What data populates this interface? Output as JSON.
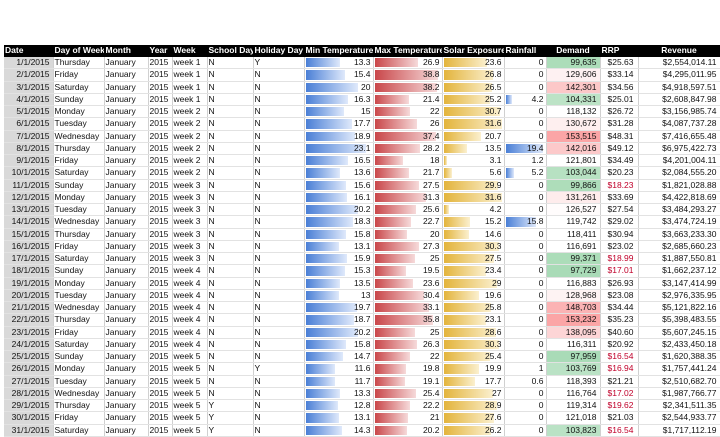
{
  "headers": [
    "Date",
    "Day of Week",
    "Month",
    "Year",
    "Week",
    "School Day",
    "Holiday Day",
    "Min Temperature",
    "Max Temperature",
    "Solar Exposure",
    "Rainfall",
    "Demand",
    "RRP",
    "Revenue"
  ],
  "scales": {
    "min_temp_max": 25,
    "max_temp_max": 40,
    "solar_max": 32,
    "rain_max": 20,
    "demand_low": 96000,
    "demand_high": 155000
  },
  "colors": {
    "header_bg": "#000000",
    "date_col_bg": "#d9d9d9",
    "green": "#63be7b",
    "red": "#f8696b",
    "low_rrp_text": "#c0002a"
  },
  "rows": [
    {
      "date": "1/1/2015",
      "dow": "Thursday",
      "month": "January",
      "year": "2015",
      "week": "week 1",
      "school": "N",
      "holiday": "Y",
      "min": "13.3",
      "max": "26.9",
      "solar": "23.6",
      "rain": "0",
      "demand": "99,635",
      "rrp": "$25.63",
      "rev": "$2,554,014.11"
    },
    {
      "date": "2/1/2015",
      "dow": "Friday",
      "month": "January",
      "year": "2015",
      "week": "week 1",
      "school": "N",
      "holiday": "N",
      "min": "15.4",
      "max": "38.8",
      "solar": "26.8",
      "rain": "0",
      "demand": "129,606",
      "rrp": "$33.14",
      "rev": "$4,295,011.95"
    },
    {
      "date": "3/1/2015",
      "dow": "Saturday",
      "month": "January",
      "year": "2015",
      "week": "week 1",
      "school": "N",
      "holiday": "N",
      "min": "20",
      "max": "38.2",
      "solar": "26.5",
      "rain": "0",
      "demand": "142,301",
      "rrp": "$34.56",
      "rev": "$4,918,597.51"
    },
    {
      "date": "4/1/2015",
      "dow": "Sunday",
      "month": "January",
      "year": "2015",
      "week": "week 1",
      "school": "N",
      "holiday": "N",
      "min": "16.3",
      "max": "21.4",
      "solar": "25.2",
      "rain": "4.2",
      "demand": "104,331",
      "rrp": "$25.01",
      "rev": "$2,608,847.98"
    },
    {
      "date": "5/1/2015",
      "dow": "Monday",
      "month": "January",
      "year": "2015",
      "week": "week 2",
      "school": "N",
      "holiday": "N",
      "min": "15",
      "max": "22",
      "solar": "30.7",
      "rain": "0",
      "demand": "118,132",
      "rrp": "$26.72",
      "rev": "$3,156,985.74"
    },
    {
      "date": "6/1/2015",
      "dow": "Tuesday",
      "month": "January",
      "year": "2015",
      "week": "week 2",
      "school": "N",
      "holiday": "N",
      "min": "17.7",
      "max": "26",
      "solar": "31.6",
      "rain": "0",
      "demand": "130,672",
      "rrp": "$31.28",
      "rev": "$4,087,737.28"
    },
    {
      "date": "7/1/2015",
      "dow": "Wednesday",
      "month": "January",
      "year": "2015",
      "week": "week 2",
      "school": "N",
      "holiday": "N",
      "min": "18.9",
      "max": "37.4",
      "solar": "20.7",
      "rain": "0",
      "demand": "153,515",
      "rrp": "$48.31",
      "rev": "$7,416,655.48"
    },
    {
      "date": "8/1/2015",
      "dow": "Thursday",
      "month": "January",
      "year": "2015",
      "week": "week 2",
      "school": "N",
      "holiday": "N",
      "min": "23.1",
      "max": "28.2",
      "solar": "13.5",
      "rain": "19.4",
      "demand": "142,016",
      "rrp": "$49.12",
      "rev": "$6,975,422.73"
    },
    {
      "date": "9/1/2015",
      "dow": "Friday",
      "month": "January",
      "year": "2015",
      "week": "week 2",
      "school": "N",
      "holiday": "N",
      "min": "16.5",
      "max": "18",
      "solar": "3.1",
      "rain": "1.2",
      "demand": "121,801",
      "rrp": "$34.49",
      "rev": "$4,201,004.11"
    },
    {
      "date": "10/1/2015",
      "dow": "Saturday",
      "month": "January",
      "year": "2015",
      "week": "week 2",
      "school": "N",
      "holiday": "N",
      "min": "13.6",
      "max": "21.7",
      "solar": "5.6",
      "rain": "5.2",
      "demand": "103,044",
      "rrp": "$20.23",
      "rev": "$2,084,555.20"
    },
    {
      "date": "11/1/2015",
      "dow": "Sunday",
      "month": "January",
      "year": "2015",
      "week": "week 3",
      "school": "N",
      "holiday": "N",
      "min": "15.6",
      "max": "27.5",
      "solar": "29.9",
      "rain": "0",
      "demand": "99,866",
      "rrp": "$18.23",
      "rev": "$1,821,028.88"
    },
    {
      "date": "12/1/2015",
      "dow": "Monday",
      "month": "January",
      "year": "2015",
      "week": "week 3",
      "school": "N",
      "holiday": "N",
      "min": "16.1",
      "max": "31.3",
      "solar": "31.6",
      "rain": "0",
      "demand": "131,261",
      "rrp": "$33.69",
      "rev": "$4,422,818.69"
    },
    {
      "date": "13/1/2015",
      "dow": "Tuesday",
      "month": "January",
      "year": "2015",
      "week": "week 3",
      "school": "N",
      "holiday": "N",
      "min": "20.2",
      "max": "25.6",
      "solar": "4.2",
      "rain": "0",
      "demand": "126,527",
      "rrp": "$27.54",
      "rev": "$3,484,293.27"
    },
    {
      "date": "14/1/2015",
      "dow": "Wednesday",
      "month": "January",
      "year": "2015",
      "week": "week 3",
      "school": "N",
      "holiday": "N",
      "min": "18.3",
      "max": "22.7",
      "solar": "15.2",
      "rain": "15.8",
      "demand": "119,742",
      "rrp": "$29.02",
      "rev": "$3,474,724.19"
    },
    {
      "date": "15/1/2015",
      "dow": "Thursday",
      "month": "January",
      "year": "2015",
      "week": "week 3",
      "school": "N",
      "holiday": "N",
      "min": "15.8",
      "max": "20",
      "solar": "14.6",
      "rain": "0",
      "demand": "118,411",
      "rrp": "$30.94",
      "rev": "$3,663,233.30"
    },
    {
      "date": "16/1/2015",
      "dow": "Friday",
      "month": "January",
      "year": "2015",
      "week": "week 3",
      "school": "N",
      "holiday": "N",
      "min": "13.1",
      "max": "27.3",
      "solar": "30.3",
      "rain": "0",
      "demand": "116,691",
      "rrp": "$23.02",
      "rev": "$2,685,660.23"
    },
    {
      "date": "17/1/2015",
      "dow": "Saturday",
      "month": "January",
      "year": "2015",
      "week": "week 3",
      "school": "N",
      "holiday": "N",
      "min": "15.9",
      "max": "25",
      "solar": "27.5",
      "rain": "0",
      "demand": "99,371",
      "rrp": "$18.99",
      "rev": "$1,887,550.81"
    },
    {
      "date": "18/1/2015",
      "dow": "Sunday",
      "month": "January",
      "year": "2015",
      "week": "week 4",
      "school": "N",
      "holiday": "N",
      "min": "15.3",
      "max": "19.5",
      "solar": "23.4",
      "rain": "0",
      "demand": "97,729",
      "rrp": "$17.01",
      "rev": "$1,662,237.12"
    },
    {
      "date": "19/1/2015",
      "dow": "Monday",
      "month": "January",
      "year": "2015",
      "week": "week 4",
      "school": "N",
      "holiday": "N",
      "min": "13.5",
      "max": "23.6",
      "solar": "29",
      "rain": "0",
      "demand": "116,883",
      "rrp": "$26.93",
      "rev": "$3,147,414.99"
    },
    {
      "date": "20/1/2015",
      "dow": "Tuesday",
      "month": "January",
      "year": "2015",
      "week": "week 4",
      "school": "N",
      "holiday": "N",
      "min": "13",
      "max": "30.4",
      "solar": "19.6",
      "rain": "0",
      "demand": "128,968",
      "rrp": "$23.08",
      "rev": "$2,976,335.95"
    },
    {
      "date": "21/1/2015",
      "dow": "Wednesday",
      "month": "January",
      "year": "2015",
      "week": "week 4",
      "school": "N",
      "holiday": "N",
      "min": "19.7",
      "max": "33.1",
      "solar": "25.8",
      "rain": "0",
      "demand": "148,703",
      "rrp": "$34.44",
      "rev": "$5,121,822.16"
    },
    {
      "date": "22/1/2015",
      "dow": "Thursday",
      "month": "January",
      "year": "2015",
      "week": "week 4",
      "school": "N",
      "holiday": "N",
      "min": "18.7",
      "max": "35.8",
      "solar": "23.1",
      "rain": "0",
      "demand": "153,232",
      "rrp": "$35.23",
      "rev": "$5,398,483.55"
    },
    {
      "date": "23/1/2015",
      "dow": "Friday",
      "month": "January",
      "year": "2015",
      "week": "week 4",
      "school": "N",
      "holiday": "N",
      "min": "20.2",
      "max": "25",
      "solar": "28.6",
      "rain": "0",
      "demand": "138,095",
      "rrp": "$40.60",
      "rev": "$5,607,245.15"
    },
    {
      "date": "24/1/2015",
      "dow": "Saturday",
      "month": "January",
      "year": "2015",
      "week": "week 4",
      "school": "N",
      "holiday": "N",
      "min": "15.8",
      "max": "26.3",
      "solar": "30.3",
      "rain": "0",
      "demand": "116,311",
      "rrp": "$20.92",
      "rev": "$2,433,450.18"
    },
    {
      "date": "25/1/2015",
      "dow": "Sunday",
      "month": "January",
      "year": "2015",
      "week": "week 5",
      "school": "N",
      "holiday": "N",
      "min": "14.7",
      "max": "22",
      "solar": "25.4",
      "rain": "0",
      "demand": "97,959",
      "rrp": "$16.54",
      "rev": "$1,620,388.35"
    },
    {
      "date": "26/1/2015",
      "dow": "Monday",
      "month": "January",
      "year": "2015",
      "week": "week 5",
      "school": "N",
      "holiday": "Y",
      "min": "11.6",
      "max": "19.8",
      "solar": "19.9",
      "rain": "1",
      "demand": "103,769",
      "rrp": "$16.94",
      "rev": "$1,757,441.24"
    },
    {
      "date": "27/1/2015",
      "dow": "Tuesday",
      "month": "January",
      "year": "2015",
      "week": "week 5",
      "school": "N",
      "holiday": "N",
      "min": "11.7",
      "max": "19.1",
      "solar": "17.7",
      "rain": "0.6",
      "demand": "118,393",
      "rrp": "$21.21",
      "rev": "$2,510,682.70"
    },
    {
      "date": "28/1/2015",
      "dow": "Wednesday",
      "month": "January",
      "year": "2015",
      "week": "week 5",
      "school": "N",
      "holiday": "N",
      "min": "13.3",
      "max": "25.4",
      "solar": "27",
      "rain": "0",
      "demand": "116,764",
      "rrp": "$17.02",
      "rev": "$1,987,766.77"
    },
    {
      "date": "29/1/2015",
      "dow": "Thursday",
      "month": "January",
      "year": "2015",
      "week": "week 5",
      "school": "Y",
      "holiday": "N",
      "min": "12.8",
      "max": "22.2",
      "solar": "28.9",
      "rain": "0",
      "demand": "119,314",
      "rrp": "$19.62",
      "rev": "$2,341,511.35"
    },
    {
      "date": "30/1/2015",
      "dow": "Friday",
      "month": "January",
      "year": "2015",
      "week": "week 5",
      "school": "Y",
      "holiday": "N",
      "min": "13.1",
      "max": "21",
      "solar": "27.6",
      "rain": "0",
      "demand": "121,018",
      "rrp": "$21.03",
      "rev": "$2,544,933.77"
    },
    {
      "date": "31/1/2015",
      "dow": "Saturday",
      "month": "January",
      "year": "2015",
      "week": "week 5",
      "school": "Y",
      "holiday": "N",
      "min": "14.3",
      "max": "20.2",
      "solar": "26.2",
      "rain": "0",
      "demand": "103,823",
      "rrp": "$16.54",
      "rev": "$1,717,112.19"
    }
  ]
}
